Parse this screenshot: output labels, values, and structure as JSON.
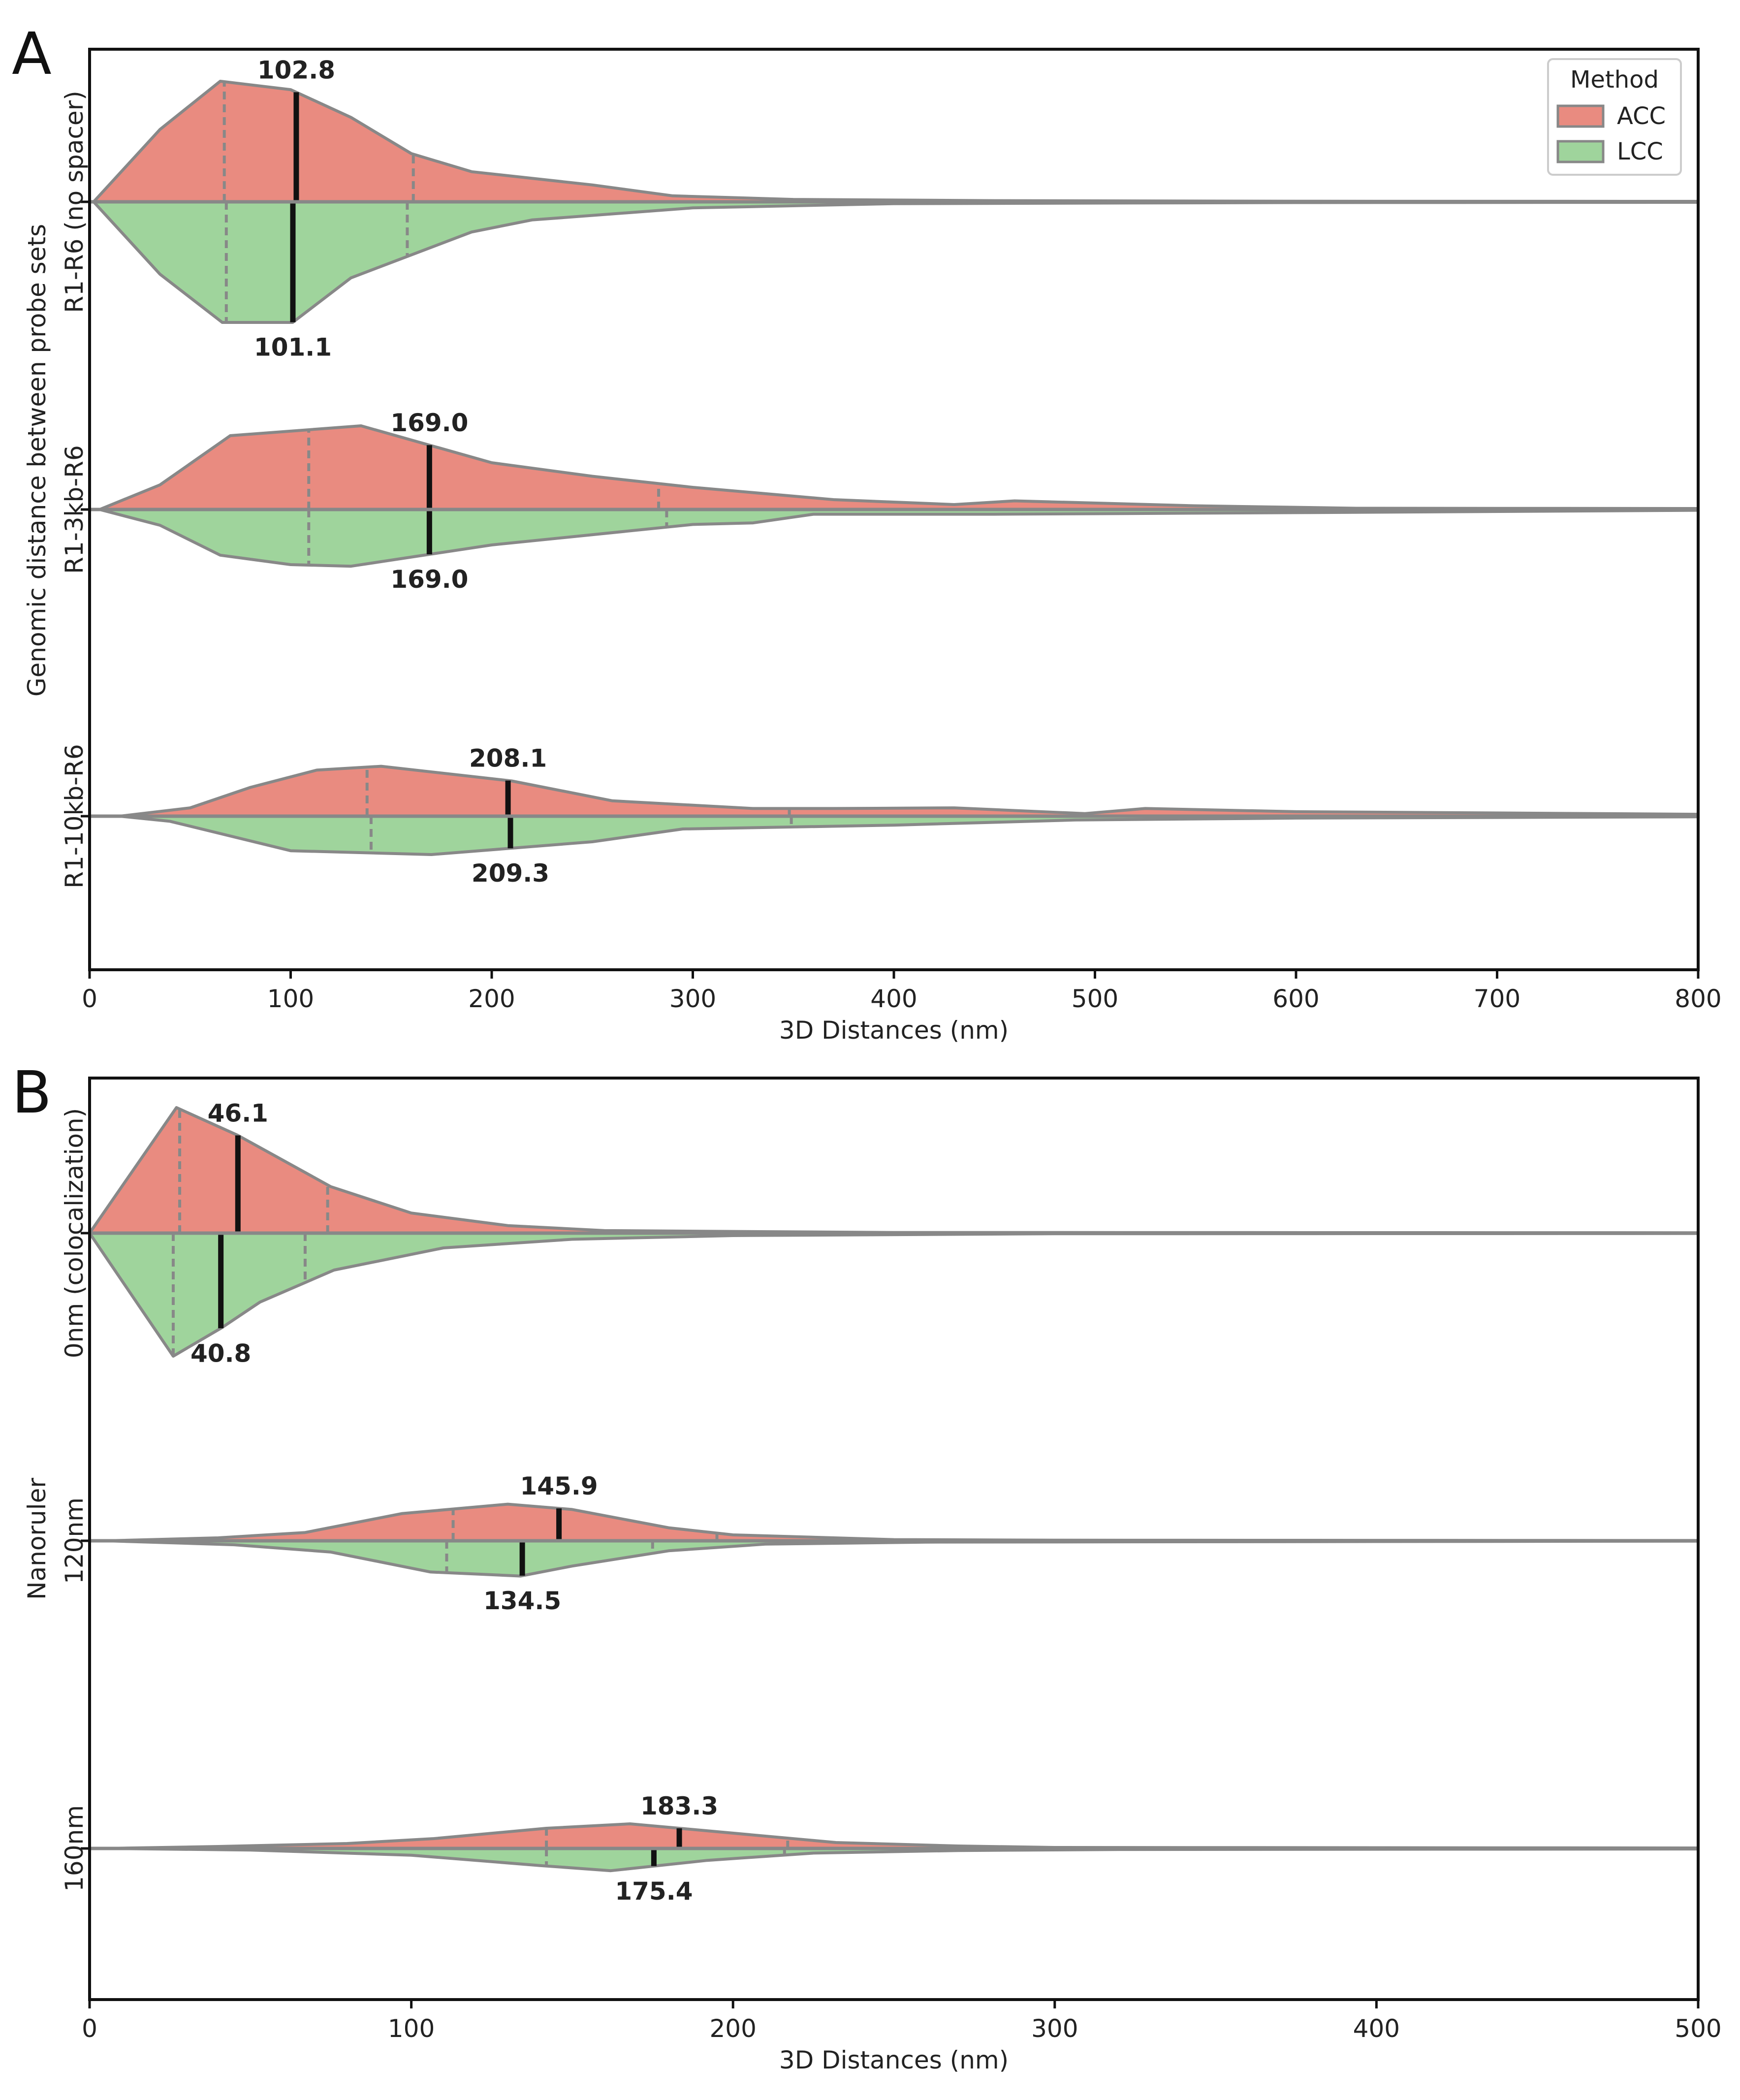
{
  "colors": {
    "ACC": "#e98b80",
    "LCC": "#9fd49c",
    "outline": "#888888",
    "median_line": "#111111",
    "frame": "#111111"
  },
  "legend": {
    "title": "Method",
    "entries": [
      "ACC",
      "LCC"
    ],
    "location": "top-right"
  },
  "chart_data": [
    {
      "panel": "A",
      "type": "split violin",
      "xlabel": "3D Distances (nm)",
      "ylabel": "Genomic distance between probe sets",
      "xlim": [
        0,
        800
      ],
      "xticks": [
        0,
        100,
        200,
        300,
        400,
        500,
        600,
        700,
        800
      ],
      "categories": [
        "R1-R6 (no spacer)",
        "R1-3kb-R6",
        "R1-10kb-R6"
      ],
      "series": [
        {
          "name": "ACC",
          "side": "upper",
          "groups": [
            {
              "category": "R1-R6 (no spacer)",
              "median": 102.8,
              "quartiles": [
                67,
                161
              ],
              "density": [
                [
                  2,
                  0
                ],
                [
                  35,
                  0.6
                ],
                [
                  65,
                  1.0
                ],
                [
                  100,
                  0.93
                ],
                [
                  130,
                  0.7
                ],
                [
                  160,
                  0.4
                ],
                [
                  190,
                  0.25
                ],
                [
                  250,
                  0.14
                ],
                [
                  290,
                  0.05
                ],
                [
                  350,
                  0.02
                ],
                [
                  450,
                  0.01
                ],
                [
                  600,
                  0.005
                ],
                [
                  800,
                  0.004
                ]
              ]
            },
            {
              "category": "R1-3kb-R6",
              "median": 169.0,
              "quartiles": [
                109,
                283
              ],
              "density": [
                [
                  5,
                  0
                ],
                [
                  35,
                  0.2
                ],
                [
                  70,
                  0.6
                ],
                [
                  135,
                  0.68
                ],
                [
                  200,
                  0.38
                ],
                [
                  250,
                  0.27
                ],
                [
                  300,
                  0.18
                ],
                [
                  370,
                  0.08
                ],
                [
                  430,
                  0.04
                ],
                [
                  460,
                  0.07
                ],
                [
                  550,
                  0.03
                ],
                [
                  630,
                  0.01
                ],
                [
                  800,
                  0.008
                ]
              ]
            },
            {
              "category": "R1-10kb-R6",
              "median": 208.1,
              "quartiles": [
                138,
                348
              ],
              "density": [
                [
                  15,
                  0
                ],
                [
                  50,
                  0.13
                ],
                [
                  80,
                  0.45
                ],
                [
                  113,
                  0.72
                ],
                [
                  145,
                  0.78
                ],
                [
                  210,
                  0.55
                ],
                [
                  260,
                  0.24
                ],
                [
                  330,
                  0.12
                ],
                [
                  370,
                  0.12
                ],
                [
                  430,
                  0.13
                ],
                [
                  495,
                  0.04
                ],
                [
                  525,
                  0.12
                ],
                [
                  600,
                  0.07
                ],
                [
                  800,
                  0.03
                ]
              ]
            }
          ]
        },
        {
          "name": "LCC",
          "side": "lower",
          "groups": [
            {
              "category": "R1-R6 (no spacer)",
              "median": 101.1,
              "quartiles": [
                68,
                158
              ],
              "density": [
                [
                  2,
                  0
                ],
                [
                  35,
                  0.6
                ],
                [
                  66,
                  1.0
                ],
                [
                  101,
                  1.0
                ],
                [
                  130,
                  0.63
                ],
                [
                  190,
                  0.25
                ],
                [
                  220,
                  0.15
                ],
                [
                  300,
                  0.05
                ],
                [
                  400,
                  0.015
                ],
                [
                  600,
                  0.006
                ],
                [
                  800,
                  0.004
                ]
              ]
            },
            {
              "category": "R1-3kb-R6",
              "median": 169.0,
              "quartiles": [
                109,
                287
              ],
              "density": [
                [
                  5,
                  0
                ],
                [
                  35,
                  0.2
                ],
                [
                  65,
                  0.58
                ],
                [
                  100,
                  0.7
                ],
                [
                  130,
                  0.72
                ],
                [
                  200,
                  0.45
                ],
                [
                  300,
                  0.19
                ],
                [
                  330,
                  0.17
                ],
                [
                  360,
                  0.06
                ],
                [
                  450,
                  0.06
                ],
                [
                  600,
                  0.04
                ],
                [
                  800,
                  0.01
                ]
              ]
            },
            {
              "category": "R1-10kb-R6",
              "median": 209.3,
              "quartiles": [
                140,
                349
              ],
              "density": [
                [
                  15,
                  0
                ],
                [
                  40,
                  0.08
                ],
                [
                  100,
                  0.54
                ],
                [
                  170,
                  0.6
                ],
                [
                  250,
                  0.4
                ],
                [
                  295,
                  0.2
                ],
                [
                  400,
                  0.14
                ],
                [
                  490,
                  0.06
                ],
                [
                  600,
                  0.03
                ],
                [
                  800,
                  0.01
                ]
              ]
            }
          ]
        }
      ]
    },
    {
      "panel": "B",
      "type": "split violin",
      "xlabel": "3D Distances (nm)",
      "ylabel": "Nanoruler",
      "xlim": [
        0,
        500
      ],
      "xticks": [
        0,
        100,
        200,
        300,
        400,
        500
      ],
      "categories": [
        "0nm (colocalization)",
        "120nm",
        "160nm"
      ],
      "series": [
        {
          "name": "ACC",
          "side": "upper",
          "groups": [
            {
              "category": "0nm (colocalization)",
              "median": 46.1,
              "quartiles": [
                28,
                74
              ],
              "density": [
                [
                  0,
                  0
                ],
                [
                  27,
                  1.0
                ],
                [
                  46,
                  0.78
                ],
                [
                  75,
                  0.37
                ],
                [
                  100,
                  0.16
                ],
                [
                  130,
                  0.06
                ],
                [
                  160,
                  0.02
                ],
                [
                  250,
                  0.005
                ],
                [
                  500,
                  0.003
                ]
              ]
            },
            {
              "category": "120nm",
              "median": 145.9,
              "quartiles": [
                113,
                195
              ],
              "density": [
                [
                  5,
                  0
                ],
                [
                  40,
                  0.05
                ],
                [
                  67,
                  0.14
                ],
                [
                  97,
                  0.46
                ],
                [
                  130,
                  0.62
                ],
                [
                  150,
                  0.53
                ],
                [
                  180,
                  0.22
                ],
                [
                  200,
                  0.1
                ],
                [
                  250,
                  0.02
                ],
                [
                  300,
                  0.01
                ],
                [
                  500,
                  0.005
                ]
              ]
            },
            {
              "category": "160nm",
              "median": 183.3,
              "quartiles": [
                142,
                217
              ],
              "density": [
                [
                  5,
                  0
                ],
                [
                  40,
                  0.04
                ],
                [
                  80,
                  0.1
                ],
                [
                  107,
                  0.2
                ],
                [
                  142,
                  0.41
                ],
                [
                  168,
                  0.5
                ],
                [
                  185,
                  0.4
                ],
                [
                  232,
                  0.12
                ],
                [
                  270,
                  0.05
                ],
                [
                  300,
                  0.02
                ],
                [
                  500,
                  0.01
                ]
              ]
            }
          ]
        },
        {
          "name": "LCC",
          "side": "lower",
          "groups": [
            {
              "category": "0nm (colocalization)",
              "median": 40.8,
              "quartiles": [
                26,
                67
              ],
              "density": [
                [
                  0,
                  0
                ],
                [
                  26,
                  1.0
                ],
                [
                  41,
                  0.77
                ],
                [
                  53,
                  0.56
                ],
                [
                  76,
                  0.3
                ],
                [
                  110,
                  0.12
                ],
                [
                  150,
                  0.05
                ],
                [
                  200,
                  0.02
                ],
                [
                  300,
                  0.005
                ],
                [
                  500,
                  0.003
                ]
              ]
            },
            {
              "category": "120nm",
              "median": 134.5,
              "quartiles": [
                111,
                175
              ],
              "density": [
                [
                  5,
                  0
                ],
                [
                  45,
                  0.06
                ],
                [
                  75,
                  0.17
                ],
                [
                  106,
                  0.47
                ],
                [
                  134,
                  0.53
                ],
                [
                  150,
                  0.38
                ],
                [
                  180,
                  0.15
                ],
                [
                  210,
                  0.05
                ],
                [
                  260,
                  0.02
                ],
                [
                  500,
                  0.005
                ]
              ]
            },
            {
              "category": "160nm",
              "median": 175.4,
              "quartiles": [
                142,
                216
              ],
              "density": [
                [
                  5,
                  0
                ],
                [
                  50,
                  0.03
                ],
                [
                  100,
                  0.13
                ],
                [
                  140,
                  0.33
                ],
                [
                  162,
                  0.43
                ],
                [
                  192,
                  0.23
                ],
                [
                  225,
                  0.09
                ],
                [
                  270,
                  0.04
                ],
                [
                  320,
                  0.02
                ],
                [
                  500,
                  0.01
                ]
              ]
            }
          ]
        }
      ]
    }
  ]
}
